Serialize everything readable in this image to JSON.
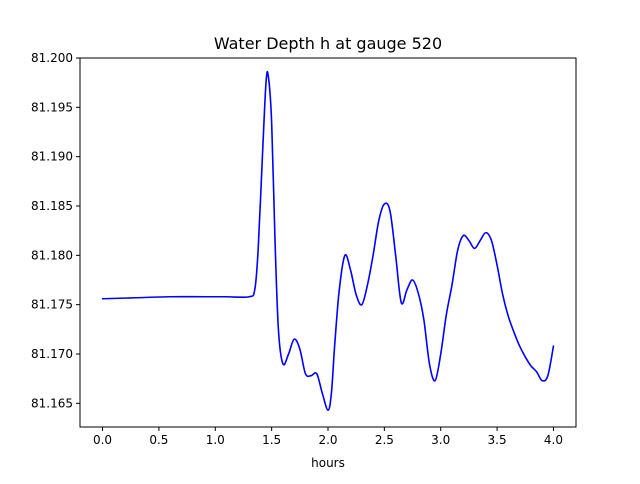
{
  "chart_data": {
    "type": "line",
    "title": "Water Depth h at gauge 520",
    "xlabel": "hours",
    "ylabel": "",
    "xlim": [
      -0.2,
      4.2
    ],
    "ylim": [
      81.1626,
      81.2
    ],
    "grid": false,
    "xticks": [
      0.0,
      0.5,
      1.0,
      1.5,
      2.0,
      2.5,
      3.0,
      3.5,
      4.0
    ],
    "xtick_labels": [
      "0.0",
      "0.5",
      "1.0",
      "1.5",
      "2.0",
      "2.5",
      "3.0",
      "3.5",
      "4.0"
    ],
    "yticks": [
      81.165,
      81.17,
      81.175,
      81.18,
      81.185,
      81.19,
      81.195,
      81.2
    ],
    "ytick_labels": [
      "81.165",
      "81.170",
      "81.175",
      "81.180",
      "81.185",
      "81.190",
      "81.195",
      "81.200"
    ],
    "series": [
      {
        "color": "#0000ff",
        "x": [
          0.0,
          0.3,
          0.6,
          0.9,
          1.1,
          1.3,
          1.35,
          1.38,
          1.42,
          1.45,
          1.47,
          1.5,
          1.53,
          1.56,
          1.6,
          1.65,
          1.7,
          1.75,
          1.8,
          1.85,
          1.9,
          1.95,
          2.0,
          2.03,
          2.06,
          2.1,
          2.15,
          2.2,
          2.25,
          2.3,
          2.35,
          2.4,
          2.45,
          2.5,
          2.55,
          2.6,
          2.65,
          2.7,
          2.75,
          2.8,
          2.85,
          2.9,
          2.95,
          3.0,
          3.05,
          3.1,
          3.15,
          3.2,
          3.25,
          3.3,
          3.35,
          3.4,
          3.45,
          3.5,
          3.55,
          3.6,
          3.65,
          3.7,
          3.75,
          3.8,
          3.85,
          3.9,
          3.95,
          4.0
        ],
        "values": [
          81.1756,
          81.1757,
          81.1758,
          81.1758,
          81.1758,
          81.1758,
          81.1765,
          81.1805,
          81.1905,
          81.1975,
          81.1982,
          81.1935,
          81.1815,
          81.1725,
          81.169,
          81.17,
          81.1715,
          81.1705,
          81.168,
          81.1678,
          81.168,
          81.166,
          81.1643,
          81.166,
          81.171,
          81.1765,
          81.18,
          81.1785,
          81.176,
          81.175,
          81.177,
          81.18,
          81.1835,
          81.1852,
          81.1845,
          81.18,
          81.1752,
          81.1765,
          81.1775,
          81.1762,
          81.1735,
          81.169,
          81.1673,
          81.17,
          81.174,
          81.177,
          81.1805,
          81.182,
          81.1815,
          81.1807,
          81.1815,
          81.1823,
          81.1815,
          81.179,
          81.176,
          81.1738,
          81.1722,
          81.1708,
          81.1697,
          81.1688,
          81.1682,
          81.1673,
          81.1678,
          81.1708
        ]
      }
    ]
  }
}
